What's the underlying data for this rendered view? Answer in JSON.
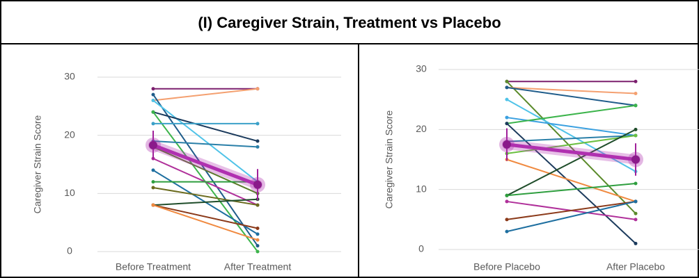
{
  "title": "(I)  Caregiver Strain, Treatment vs Placebo",
  "chart_data": [
    {
      "type": "line",
      "categories": [
        "Before Treatment",
        "After Treatment"
      ],
      "ylabel": "Caregiver Strain Score",
      "ylim": [
        0,
        30
      ],
      "yticks": [
        0,
        10,
        20,
        30
      ],
      "grid": true,
      "series": [
        {
          "color": "#7b1f6e",
          "values": [
            28,
            28
          ]
        },
        {
          "color": "#f4a070",
          "values": [
            26,
            28
          ]
        },
        {
          "color": "#1f5c8a",
          "values": [
            27,
            1
          ]
        },
        {
          "color": "#4fc3e8",
          "values": [
            26,
            12
          ]
        },
        {
          "color": "#1b3a5c",
          "values": [
            24,
            19
          ]
        },
        {
          "color": "#3cb44b",
          "values": [
            24,
            0
          ]
        },
        {
          "color": "#3aa0c8",
          "values": [
            22,
            22
          ]
        },
        {
          "color": "#2a7fa8",
          "values": [
            19,
            18
          ]
        },
        {
          "color": "#5a7a2a",
          "values": [
            18,
            10
          ]
        },
        {
          "color": "#b0309a",
          "values": [
            16,
            8
          ]
        },
        {
          "color": "#1e6fa0",
          "values": [
            14,
            3
          ]
        },
        {
          "color": "#2e9e3e",
          "values": [
            12,
            12
          ]
        },
        {
          "color": "#6b6b1e",
          "values": [
            11,
            8
          ]
        },
        {
          "color": "#1f4d2a",
          "values": [
            8,
            9
          ]
        },
        {
          "color": "#8b3a1a",
          "values": [
            8,
            4
          ]
        },
        {
          "color": "#f08a40",
          "values": [
            8,
            2
          ]
        }
      ],
      "mean": {
        "color": "#b030b0",
        "values": [
          18.3,
          11.5
        ],
        "errors": [
          2.5,
          2.7
        ]
      }
    },
    {
      "type": "line",
      "categories": [
        "Before Placebo",
        "After Placebo"
      ],
      "ylabel": "Caregiver Strain Score",
      "ylim": [
        0,
        30
      ],
      "yticks": [
        0,
        10,
        20,
        30
      ],
      "grid": true,
      "series": [
        {
          "color": "#7b1f6e",
          "values": [
            28,
            28
          ]
        },
        {
          "color": "#5a8a2a",
          "values": [
            28,
            6
          ]
        },
        {
          "color": "#f4a070",
          "values": [
            27,
            26
          ]
        },
        {
          "color": "#1f5c8a",
          "values": [
            27,
            24
          ]
        },
        {
          "color": "#4fc3e8",
          "values": [
            25,
            13
          ]
        },
        {
          "color": "#3aa0e0",
          "values": [
            22,
            19
          ]
        },
        {
          "color": "#3cb44b",
          "values": [
            21,
            24
          ]
        },
        {
          "color": "#1b3a5c",
          "values": [
            21,
            1
          ]
        },
        {
          "color": "#2a7fa8",
          "values": [
            18,
            19
          ]
        },
        {
          "color": "#6abf40",
          "values": [
            16,
            19
          ]
        },
        {
          "color": "#f08a40",
          "values": [
            15,
            8
          ]
        },
        {
          "color": "#1f4d2a",
          "values": [
            9,
            20
          ]
        },
        {
          "color": "#2e9e3e",
          "values": [
            9,
            11
          ]
        },
        {
          "color": "#b0309a",
          "values": [
            8,
            5
          ]
        },
        {
          "color": "#8b3a1a",
          "values": [
            5,
            8
          ]
        },
        {
          "color": "#1e6fa0",
          "values": [
            3,
            8
          ]
        }
      ],
      "mean": {
        "color": "#b030b0",
        "values": [
          17.5,
          15
        ],
        "errors": [
          2.7,
          2.7
        ]
      }
    }
  ]
}
